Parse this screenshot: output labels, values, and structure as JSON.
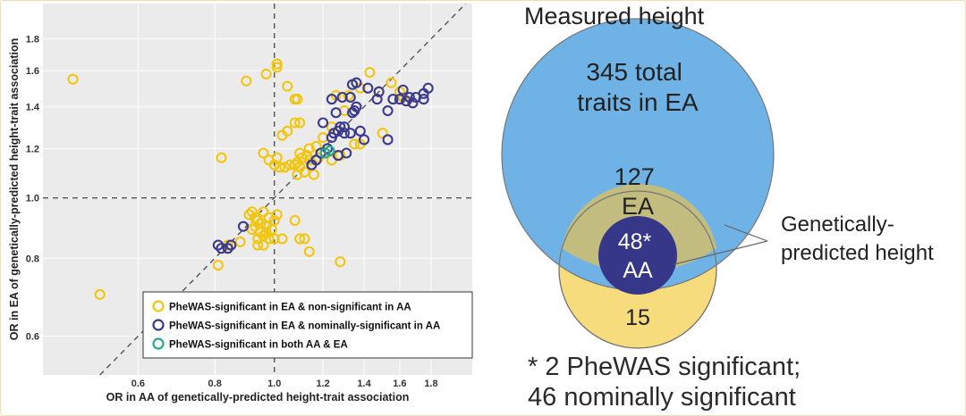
{
  "chart_data": [
    {
      "type": "scatter",
      "xlabel": "OR in AA of genetically-predicted height-trait association",
      "ylabel": "OR in EA of genetically-predicted height-trait association",
      "xscale": "log",
      "yscale": "log",
      "xlim": [
        0.42,
        2.1
      ],
      "ylim": [
        0.52,
        2.05
      ],
      "x_ticks": [
        0.6,
        0.8,
        1.0,
        1.2,
        1.4,
        1.6,
        1.8
      ],
      "y_ticks": [
        0.6,
        0.8,
        1.0,
        1.2,
        1.4,
        1.6,
        1.8
      ],
      "reference_lines": [
        "x=1",
        "y=1",
        "y=x"
      ],
      "legend_position": "bottom-right",
      "series": [
        {
          "name": "PheWAS-significant in EA & non-significant in AA",
          "color": "#f2c50f",
          "points": [
            [
              0.47,
              1.55
            ],
            [
              0.52,
              0.7
            ],
            [
              0.82,
              1.16
            ],
            [
              0.9,
              1.54
            ],
            [
              0.97,
              1.58
            ],
            [
              1.01,
              1.62
            ],
            [
              1.01,
              1.64
            ],
            [
              1.05,
              1.51
            ],
            [
              1.08,
              1.44
            ],
            [
              1.09,
              1.44
            ],
            [
              1.1,
              1.32
            ],
            [
              1.08,
              1.32
            ],
            [
              1.05,
              1.28
            ],
            [
              1.03,
              1.26
            ],
            [
              1.1,
              1.18
            ],
            [
              1.14,
              1.2
            ],
            [
              1.13,
              1.17
            ],
            [
              1.11,
              1.16
            ],
            [
              1.09,
              1.14
            ],
            [
              1.08,
              1.13
            ],
            [
              1.06,
              1.13
            ],
            [
              1.04,
              1.12
            ],
            [
              1.02,
              1.12
            ],
            [
              1.0,
              1.13
            ],
            [
              0.98,
              1.15
            ],
            [
              0.96,
              1.18
            ],
            [
              1.01,
              1.16
            ],
            [
              1.14,
              1.15
            ],
            [
              1.12,
              1.1
            ],
            [
              1.09,
              1.09
            ],
            [
              1.1,
              1.12
            ],
            [
              1.17,
              1.21
            ],
            [
              1.2,
              1.25
            ],
            [
              1.24,
              1.3
            ],
            [
              1.3,
              1.38
            ],
            [
              1.32,
              1.46
            ],
            [
              1.26,
              1.46
            ],
            [
              1.38,
              1.5
            ],
            [
              1.43,
              1.59
            ],
            [
              1.48,
              1.48
            ],
            [
              1.55,
              1.53
            ],
            [
              1.6,
              1.48
            ],
            [
              1.62,
              1.45
            ],
            [
              1.5,
              1.27
            ],
            [
              1.35,
              1.22
            ],
            [
              1.38,
              1.22
            ],
            [
              1.18,
              1.16
            ],
            [
              1.24,
              1.15
            ],
            [
              1.28,
              1.17
            ],
            [
              1.16,
              1.09
            ],
            [
              0.91,
              0.94
            ],
            [
              0.93,
              0.93
            ],
            [
              0.94,
              0.92
            ],
            [
              0.95,
              0.91
            ],
            [
              0.93,
              0.9
            ],
            [
              0.92,
              0.89
            ],
            [
              0.95,
              0.88
            ],
            [
              0.96,
              0.87
            ],
            [
              0.94,
              0.86
            ],
            [
              0.97,
              0.9
            ],
            [
              0.98,
              0.93
            ],
            [
              1.0,
              0.92
            ],
            [
              0.99,
              0.89
            ],
            [
              0.97,
              0.88
            ],
            [
              1.0,
              0.86
            ],
            [
              0.98,
              0.86
            ],
            [
              0.94,
              0.84
            ],
            [
              0.96,
              0.84
            ],
            [
              1.03,
              0.86
            ],
            [
              1.08,
              0.92
            ],
            [
              1.1,
              0.86
            ],
            [
              1.12,
              0.86
            ],
            [
              1.14,
              0.82
            ],
            [
              0.88,
              0.85
            ],
            [
              0.84,
              0.84
            ],
            [
              0.81,
              0.78
            ],
            [
              1.28,
              0.79
            ],
            [
              0.92,
              0.95
            ],
            [
              0.96,
              0.95
            ],
            [
              1.01,
              0.94
            ]
          ]
        },
        {
          "name": "PheWAS-significant in EA & nominally-significant in AA",
          "color": "#3b3a8c",
          "points": [
            [
              0.81,
              0.84
            ],
            [
              0.82,
              0.83
            ],
            [
              0.84,
              0.83
            ],
            [
              0.85,
              0.84
            ],
            [
              0.89,
              0.9
            ],
            [
              1.15,
              1.13
            ],
            [
              1.17,
              1.15
            ],
            [
              1.19,
              1.18
            ],
            [
              1.22,
              1.2
            ],
            [
              1.24,
              1.25
            ],
            [
              1.25,
              1.27
            ],
            [
              1.27,
              1.28
            ],
            [
              1.28,
              1.3
            ],
            [
              1.3,
              1.3
            ],
            [
              1.27,
              1.17
            ],
            [
              1.31,
              1.18
            ],
            [
              1.33,
              1.27
            ],
            [
              1.34,
              1.37
            ],
            [
              1.35,
              1.38
            ],
            [
              1.33,
              1.45
            ],
            [
              1.34,
              1.52
            ],
            [
              1.36,
              1.53
            ],
            [
              1.42,
              1.5
            ],
            [
              1.47,
              1.44
            ],
            [
              1.48,
              1.48
            ],
            [
              1.53,
              1.38
            ],
            [
              1.56,
              1.44
            ],
            [
              1.6,
              1.44
            ],
            [
              1.66,
              1.45
            ],
            [
              1.7,
              1.45
            ],
            [
              1.62,
              1.49
            ],
            [
              1.64,
              1.43
            ],
            [
              1.68,
              1.42
            ],
            [
              1.75,
              1.47
            ],
            [
              1.78,
              1.5
            ],
            [
              1.75,
              1.44
            ],
            [
              1.38,
              1.28
            ],
            [
              1.4,
              1.24
            ],
            [
              1.53,
              1.24
            ],
            [
              1.2,
              1.32
            ],
            [
              1.24,
              1.44
            ],
            [
              1.26,
              1.37
            ],
            [
              1.29,
              1.45
            ],
            [
              1.3,
              1.27
            ],
            [
              1.36,
              1.4
            ]
          ]
        },
        {
          "name": "PheWAS-significant in both AA & EA",
          "color": "#2aa684",
          "points": [
            [
              1.21,
              1.18
            ],
            [
              1.23,
              1.19
            ]
          ]
        }
      ]
    },
    {
      "type": "venn",
      "title": "Measured height",
      "sets": [
        {
          "id": "measured",
          "label": "345 total traits in EA",
          "color": "#6fb2e6"
        },
        {
          "id": "predicted-ea",
          "label": "127 EA",
          "color": "#c2bd7e"
        },
        {
          "id": "predicted-aa",
          "label": "48* AA",
          "color": "#37378a"
        }
      ],
      "outside_region_label": "15",
      "outside_region_color": "#f7dc7e",
      "callout": "Genetically-predicted height",
      "note": [
        "* 2 PheWAS significant;",
        "46 nominally significant"
      ]
    }
  ]
}
